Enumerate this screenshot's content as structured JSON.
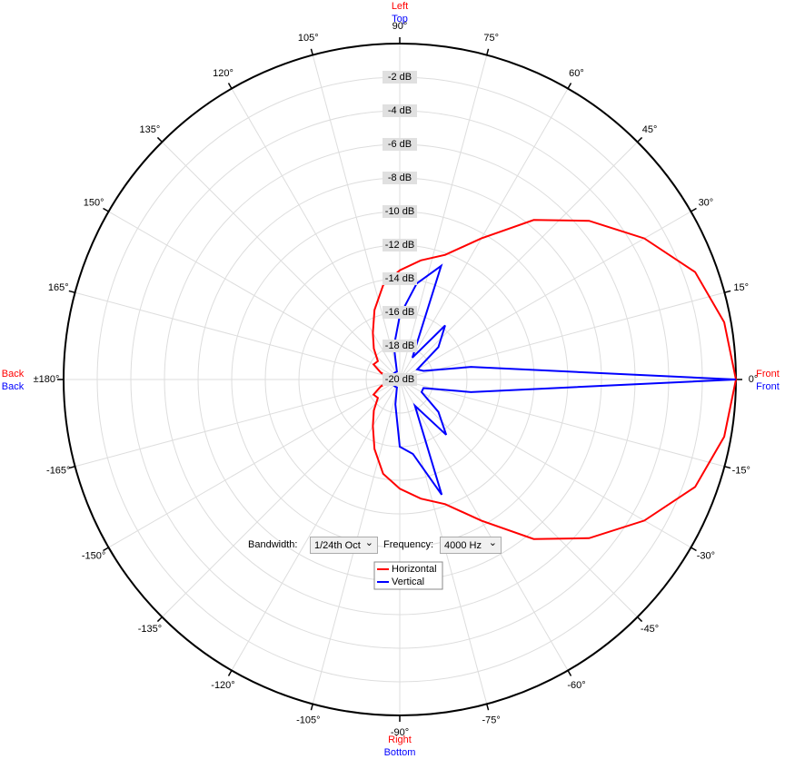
{
  "chart_data": {
    "type": "polar",
    "x": [
      -180,
      -170,
      -160,
      -150,
      -140,
      -130,
      -120,
      -110,
      -100,
      -90,
      -80,
      -70,
      -60,
      -50,
      -40,
      -30,
      -20,
      -10,
      0,
      10,
      20,
      30,
      40,
      50,
      60,
      70,
      80,
      90,
      100,
      110,
      120,
      130,
      140,
      150,
      160,
      170,
      180
    ],
    "series": [
      {
        "name": "Horizontal",
        "color": "#ff0000",
        "values": [
          -19.6,
          -19.4,
          -18.8,
          -18.2,
          -18.3,
          -17.6,
          -16.8,
          -15.6,
          -14.3,
          -13.5,
          -12.8,
          -12.1,
          -10.3,
          -7.6,
          -5.3,
          -3.2,
          -1.3,
          -0.4,
          0,
          -0.4,
          -1.3,
          -3.2,
          -5.3,
          -7.6,
          -10.3,
          -12.1,
          -12.8,
          -13.5,
          -14.3,
          -15.6,
          -16.8,
          -17.6,
          -18.3,
          -18.2,
          -18.8,
          -19.4,
          -19.6
        ]
      },
      {
        "name": "Vertical",
        "color": "#0000ff",
        "values": [
          -19.5,
          -19.5,
          -19.5,
          -19.5,
          -19.5,
          -19.5,
          -19.5,
          -19.5,
          -18.5,
          -16,
          -15.5,
          -12.7,
          -18.2,
          -15.7,
          -17,
          -18.5,
          -18.5,
          -15.7,
          0,
          -15.7,
          -18.5,
          -18.8,
          -17,
          -15.8,
          -18.5,
          -12.8,
          -14.2,
          -16.2,
          -18,
          -19.5,
          -19.5,
          -19.5,
          -19.5,
          -19.5,
          -19.5,
          -19.5,
          -19.5
        ]
      }
    ],
    "rlim": [
      -20,
      0
    ],
    "rticks": [
      {
        "value": -2,
        "label": "-2 dB"
      },
      {
        "value": -4,
        "label": "-4 dB"
      },
      {
        "value": -6,
        "label": "-6 dB"
      },
      {
        "value": -8,
        "label": "-8 dB"
      },
      {
        "value": -10,
        "label": "-10 dB"
      },
      {
        "value": -12,
        "label": "-12 dB"
      },
      {
        "value": -14,
        "label": "-14 dB"
      },
      {
        "value": -16,
        "label": "-16 dB"
      },
      {
        "value": -18,
        "label": "-18 dB"
      },
      {
        "value": -20,
        "label": "-20 dB"
      }
    ],
    "thetaticks": [
      {
        "value": 0,
        "label": "0°"
      },
      {
        "value": 15,
        "label": "15°"
      },
      {
        "value": 30,
        "label": "30°"
      },
      {
        "value": 45,
        "label": "45°"
      },
      {
        "value": 60,
        "label": "60°"
      },
      {
        "value": 75,
        "label": "75°"
      },
      {
        "value": 90,
        "label": "90°"
      },
      {
        "value": 105,
        "label": "105°"
      },
      {
        "value": 120,
        "label": "120°"
      },
      {
        "value": 135,
        "label": "135°"
      },
      {
        "value": 150,
        "label": "150°"
      },
      {
        "value": 165,
        "label": "165°"
      },
      {
        "value": 180,
        "label": "±180°"
      },
      {
        "value": -165,
        "label": "-165°"
      },
      {
        "value": -150,
        "label": "-150°"
      },
      {
        "value": -135,
        "label": "-135°"
      },
      {
        "value": -120,
        "label": "-120°"
      },
      {
        "value": -105,
        "label": "-105°"
      },
      {
        "value": -90,
        "label": "-90°"
      },
      {
        "value": -75,
        "label": "-75°"
      },
      {
        "value": -60,
        "label": "-60°"
      },
      {
        "value": -45,
        "label": "-45°"
      },
      {
        "value": -30,
        "label": "-30°"
      },
      {
        "value": -15,
        "label": "-15°"
      }
    ],
    "grid": true,
    "direction_labels": {
      "top": [
        {
          "text": "Left",
          "color": "#ff0000"
        },
        {
          "text": "Top",
          "color": "#0000ff"
        }
      ],
      "bottom": [
        {
          "text": "Right",
          "color": "#ff0000"
        },
        {
          "text": "Bottom",
          "color": "#0000ff"
        }
      ],
      "left": [
        {
          "text": "Back",
          "color": "#ff0000"
        },
        {
          "text": "Back",
          "color": "#0000ff"
        }
      ],
      "right": [
        {
          "text": "Front",
          "color": "#ff0000"
        },
        {
          "text": "Front",
          "color": "#0000ff"
        }
      ]
    },
    "controls": {
      "bandwidth_label": "Bandwidth:",
      "bandwidth_value": "1/24th Oct",
      "frequency_label": "Frequency:",
      "frequency_value": "4000 Hz"
    }
  }
}
